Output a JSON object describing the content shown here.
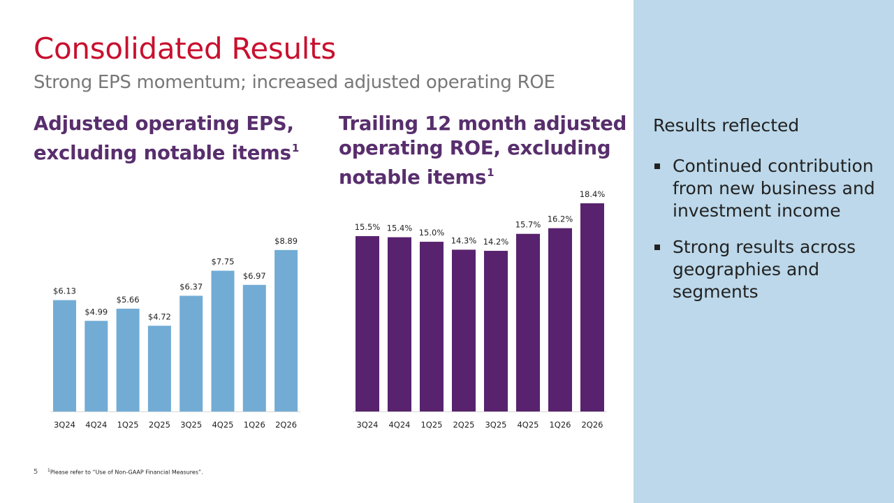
{
  "slide": {
    "title": "Consolidated Results",
    "subtitle": "Strong EPS momentum; increased adjusted operating ROE",
    "page_number": "5",
    "footnote_marker": "1",
    "footnote_text": "Please refer to “Use of Non-GAAP Financial Measures”."
  },
  "side_panel": {
    "heading": "Results reflected",
    "bullets": [
      "Continued contribution from new business and investment income",
      "Strong results across geographies and segments"
    ],
    "background_color": "#bcd8ea"
  },
  "chart_headings": {
    "eps": {
      "lines": [
        "Adjusted operating EPS,",
        "excluding notable items"
      ],
      "superscript": "1"
    },
    "roe": {
      "lines": [
        "Trailing 12 month adjusted",
        "operating ROE, excluding",
        "notable items"
      ],
      "superscript": "1"
    }
  },
  "colors": {
    "title": "#c8102e",
    "heading": "#582e6d",
    "eps_bar": "#72acd5",
    "roe_bar": "#59226e"
  },
  "chart_data": [
    {
      "type": "bar",
      "title": "Adjusted operating EPS, excluding notable items",
      "categories": [
        "3Q24",
        "4Q24",
        "1Q25",
        "2Q25",
        "3Q25",
        "4Q25",
        "1Q26",
        "2Q26"
      ],
      "values": [
        6.13,
        4.99,
        5.66,
        4.72,
        6.37,
        7.75,
        6.97,
        8.89
      ],
      "data_labels": [
        "$6.13",
        "$4.99",
        "$5.66",
        "$4.72",
        "$6.37",
        "$7.75",
        "$6.97",
        "$8.89"
      ],
      "ylim": [
        0,
        10.5
      ],
      "grid": false,
      "color": "#72acd5"
    },
    {
      "type": "bar",
      "title": "Trailing 12 month adjusted operating ROE, excluding notable items",
      "categories": [
        "3Q24",
        "4Q24",
        "1Q25",
        "2Q25",
        "3Q25",
        "4Q25",
        "1Q26",
        "2Q26"
      ],
      "values": [
        15.5,
        15.4,
        15.0,
        14.3,
        14.2,
        15.7,
        16.2,
        18.4
      ],
      "data_labels": [
        "15.5%",
        "15.4%",
        "15.0%",
        "14.3%",
        "14.2%",
        "15.7%",
        "16.2%",
        "18.4%"
      ],
      "ylim": [
        0,
        18.4
      ],
      "grid": false,
      "color": "#59226e"
    }
  ]
}
